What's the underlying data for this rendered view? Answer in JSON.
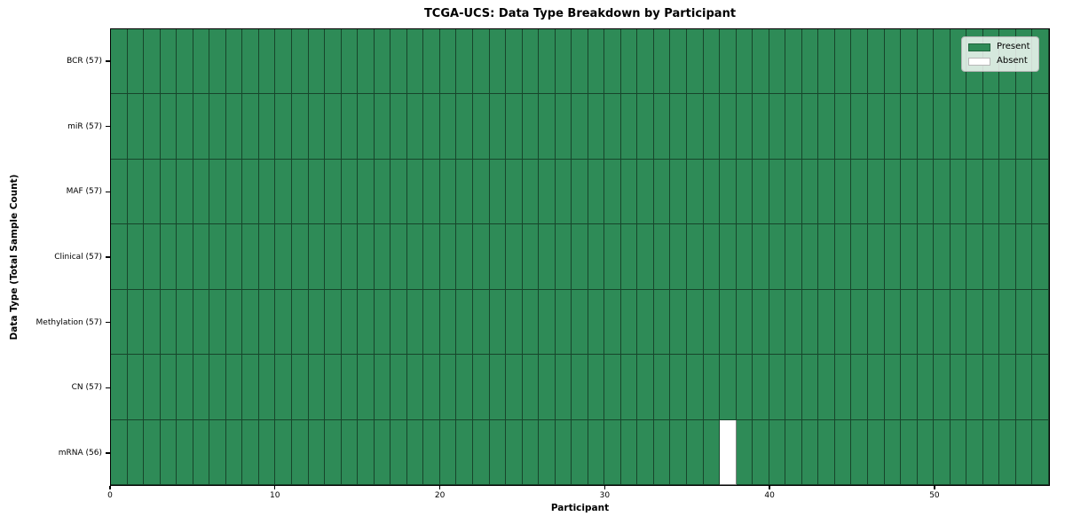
{
  "chart_data": {
    "type": "heatmap",
    "title": "TCGA-UCS: Data Type Breakdown by Participant",
    "xlabel": "Participant",
    "ylabel": "Data Type (Total Sample Count)",
    "xlim": [
      0,
      57
    ],
    "x_ticks": [
      0,
      10,
      20,
      30,
      40,
      50
    ],
    "n_participants": 57,
    "grid": "cell-borders",
    "rows": [
      {
        "label": "BCR (57)",
        "data_type": "BCR",
        "present_count": 57,
        "absent_participant_indexes": []
      },
      {
        "label": "miR (57)",
        "data_type": "miR",
        "present_count": 57,
        "absent_participant_indexes": []
      },
      {
        "label": "MAF (57)",
        "data_type": "MAF",
        "present_count": 57,
        "absent_participant_indexes": []
      },
      {
        "label": "Clinical (57)",
        "data_type": "Clinical",
        "present_count": 57,
        "absent_participant_indexes": []
      },
      {
        "label": "Methylation (57)",
        "data_type": "Methylation",
        "present_count": 57,
        "absent_participant_indexes": []
      },
      {
        "label": "CN (57)",
        "data_type": "CN",
        "present_count": 57,
        "absent_participant_indexes": []
      },
      {
        "label": "mRNA (56)",
        "data_type": "mRNA",
        "present_count": 56,
        "absent_participant_indexes": [
          37
        ]
      }
    ],
    "legend": {
      "position": "upper right",
      "entries": [
        {
          "label": "Present",
          "color": "#2e8b57"
        },
        {
          "label": "Absent",
          "color": "#ffffff"
        }
      ]
    },
    "colors": {
      "present": "#2e8b57",
      "absent": "#ffffff",
      "cell_border": "rgba(0,0,0,0.5)",
      "axes_border": "#000000"
    }
  }
}
